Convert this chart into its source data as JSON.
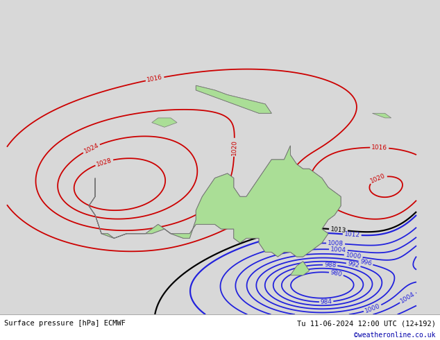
{
  "title_left": "Surface pressure [hPa] ECMWF",
  "title_right": "Tu 11-06-2024 12:00 UTC (12+192)",
  "credit": "©weatheronline.co.uk",
  "bg_color": "#d8d8d8",
  "land_color": "#aade96",
  "figsize": [
    6.34,
    4.9
  ],
  "dpi": 100,
  "isobar_blue": "#2222dd",
  "isobar_red": "#cc0000",
  "isobar_black": "#000000",
  "font_size_label": 6.5,
  "line_width": 1.3
}
